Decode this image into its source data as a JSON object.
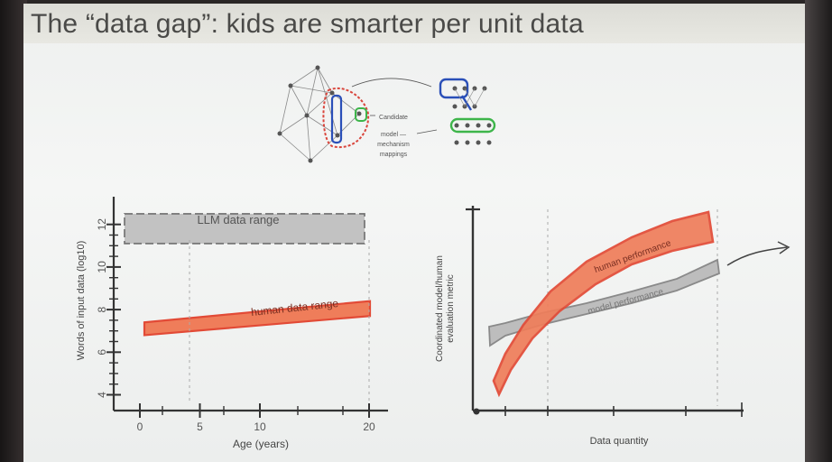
{
  "slide": {
    "title": "The “data gap”: kids are smarter per unit data"
  },
  "diagram": {
    "caption_lines": [
      "Candidate",
      "model —",
      "mechanism",
      "mappings"
    ],
    "colors": {
      "blue": "#2a4fb8",
      "red": "#d9453c",
      "green": "#3db54a",
      "gray": "#9a9a9a"
    }
  },
  "chart_data": [
    {
      "type": "area",
      "xlabel": "Age (years)",
      "ylabel": "Words of input data (log10)",
      "x_ticks": [
        "0",
        "5",
        "10",
        "20"
      ],
      "y_ticks": [
        "4",
        "6",
        "8",
        "10",
        "12"
      ],
      "ylim": [
        3.5,
        12.5
      ],
      "series": [
        {
          "name": "LLM data range",
          "x_range": [
            -1,
            20
          ],
          "lower": [
            11.1,
            11.1
          ],
          "upper": [
            12.5,
            12.5
          ],
          "color": "#bdbdbd"
        },
        {
          "name": "human data range",
          "x": [
            0,
            20
          ],
          "lower": [
            6.8,
            7.7
          ],
          "upper": [
            7.4,
            8.4
          ],
          "color": "#ef7d5a"
        }
      ],
      "grid": false
    },
    {
      "type": "line",
      "xlabel": "Data quantity",
      "ylabel": "Coordinated model/human evaluation metric",
      "series": [
        {
          "name": "human performance",
          "color": "#ef7d5a"
        },
        {
          "name": "model performance",
          "color": "#b9b9b9"
        }
      ],
      "grid": false
    }
  ]
}
